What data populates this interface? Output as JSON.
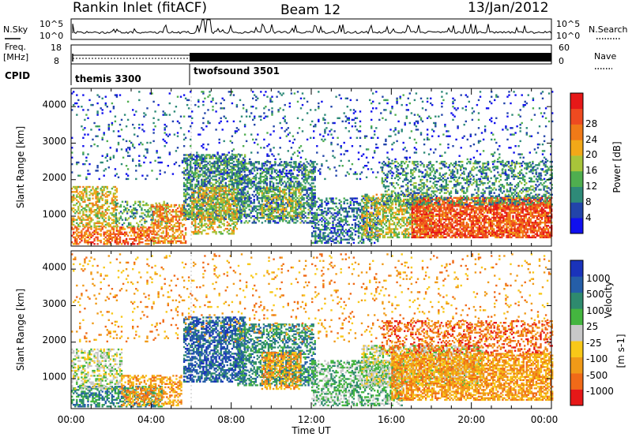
{
  "header": {
    "title": "Rankin Inlet (fitACF)",
    "beam": "Beam 12",
    "date": "13/Jan/2012"
  },
  "strip": {
    "nsky_label": "N.Sky",
    "nsky_ticks": [
      "10^5",
      "10^0"
    ],
    "nsearch_label": "N.Search",
    "nsearch_ticks": [
      "10^5",
      "10^0"
    ],
    "freq_label": "Freq.",
    "freq_unit": "[MHz]",
    "freq_ticks": [
      "18",
      "8"
    ],
    "nave_label": "Nave",
    "nave_ticks": [
      "60",
      "0"
    ],
    "cpid_label": "CPID",
    "cpid_segments": [
      {
        "name": "themis 3300",
        "start_hour": 0,
        "end_hour": 6
      },
      {
        "name": "twofsound 3501",
        "start_hour": 6,
        "end_hour": 24
      }
    ]
  },
  "chart_data": [
    {
      "type": "heatmap",
      "quantity": "power",
      "ylabel": "Slant Range [km]",
      "xlabel": "",
      "xlim": [
        0,
        24
      ],
      "ylim": [
        180,
        4500
      ],
      "yticks": [
        "1000",
        "2000",
        "3000",
        "4000"
      ],
      "colorbar": {
        "label": "Power [dB]",
        "ticks": [
          "4",
          "8",
          "12",
          "16",
          "20",
          "24",
          "28"
        ],
        "colors": [
          "#1010ee",
          "#2244aa",
          "#2e8a78",
          "#4fae4f",
          "#a8c43a",
          "#f2a818",
          "#f07a18",
          "#ee4a20",
          "#e61818"
        ]
      },
      "regions": [
        {
          "t0": 0.0,
          "t1": 4.2,
          "r0": 220,
          "r1": 700,
          "level": 24,
          "density": 0.55
        },
        {
          "t0": 0.0,
          "t1": 2.3,
          "r0": 700,
          "r1": 1800,
          "level": 18,
          "density": 0.5
        },
        {
          "t0": 2.2,
          "t1": 4.8,
          "r0": 700,
          "r1": 1400,
          "level": 12,
          "density": 0.35
        },
        {
          "t0": 4.0,
          "t1": 5.7,
          "r0": 250,
          "r1": 1300,
          "level": 22,
          "density": 0.55
        },
        {
          "t0": 5.6,
          "t1": 8.7,
          "r0": 900,
          "r1": 2700,
          "level": 10,
          "density": 0.6
        },
        {
          "t0": 6.0,
          "t1": 8.3,
          "r0": 500,
          "r1": 1800,
          "level": 18,
          "density": 0.45
        },
        {
          "t0": 8.3,
          "t1": 12.2,
          "r0": 800,
          "r1": 2500,
          "level": 9,
          "density": 0.5
        },
        {
          "t0": 9.5,
          "t1": 11.5,
          "r0": 900,
          "r1": 1800,
          "level": 16,
          "density": 0.4
        },
        {
          "t0": 12.0,
          "t1": 15.3,
          "r0": 250,
          "r1": 1500,
          "level": 8,
          "density": 0.45
        },
        {
          "t0": 14.5,
          "t1": 18.0,
          "r0": 400,
          "r1": 1600,
          "level": 16,
          "density": 0.55
        },
        {
          "t0": 17.0,
          "t1": 24.0,
          "r0": 400,
          "r1": 1500,
          "level": 26,
          "density": 0.75
        },
        {
          "t0": 15.5,
          "t1": 24.0,
          "r0": 1300,
          "r1": 2500,
          "level": 10,
          "density": 0.35
        },
        {
          "t0": 0.0,
          "t1": 24.0,
          "r0": 2000,
          "r1": 4400,
          "level": 6,
          "density": 0.07
        }
      ]
    },
    {
      "type": "heatmap",
      "quantity": "velocity",
      "ylabel": "Slant Range [km]",
      "xlabel": "Time UT",
      "xlim": [
        0,
        24
      ],
      "ylim": [
        180,
        4500
      ],
      "yticks": [
        "1000",
        "2000",
        "3000",
        "4000"
      ],
      "xticks": [
        "00:00",
        "04:00",
        "08:00",
        "12:00",
        "16:00",
        "20:00",
        "00:00"
      ],
      "colorbar": {
        "label": "Velocity",
        "unit": "[m s-1]",
        "ticks": [
          "1000",
          "500",
          "100",
          "25",
          "-25",
          "-100",
          "-500",
          "-1000"
        ],
        "colors": [
          "#1a33bb",
          "#255ea8",
          "#2e8a6e",
          "#44b53f",
          "#c8c8c8",
          "#f8c818",
          "#f09a18",
          "#f06a18",
          "#e61818"
        ]
      },
      "regions": [
        {
          "t0": 0.0,
          "t1": 4.5,
          "r0": 220,
          "r1": 800,
          "level": 2,
          "density": 0.5
        },
        {
          "t0": 0.0,
          "t1": 2.5,
          "r0": 700,
          "r1": 1800,
          "level": 4,
          "density": 0.45
        },
        {
          "t0": 2.5,
          "t1": 5.5,
          "r0": 250,
          "r1": 1100,
          "level": 6,
          "density": 0.45
        },
        {
          "t0": 5.6,
          "t1": 8.7,
          "r0": 900,
          "r1": 2700,
          "level": 1,
          "density": 0.6
        },
        {
          "t0": 8.3,
          "t1": 12.2,
          "r0": 800,
          "r1": 2500,
          "level": 2,
          "density": 0.5
        },
        {
          "t0": 9.5,
          "t1": 11.5,
          "r0": 700,
          "r1": 1700,
          "level": 6,
          "density": 0.45
        },
        {
          "t0": 12.0,
          "t1": 16.5,
          "r0": 250,
          "r1": 1500,
          "level": 3,
          "density": 0.5
        },
        {
          "t0": 14.5,
          "t1": 20.5,
          "r0": 800,
          "r1": 1900,
          "level": 4,
          "density": 0.55
        },
        {
          "t0": 16.0,
          "t1": 24.0,
          "r0": 400,
          "r1": 1700,
          "level": 6,
          "density": 0.65
        },
        {
          "t0": 15.5,
          "t1": 24.0,
          "r0": 1700,
          "r1": 2600,
          "level": 7,
          "density": 0.35
        },
        {
          "t0": 0.0,
          "t1": 24.0,
          "r0": 2000,
          "r1": 4400,
          "level": 6,
          "density": 0.06
        }
      ]
    }
  ]
}
